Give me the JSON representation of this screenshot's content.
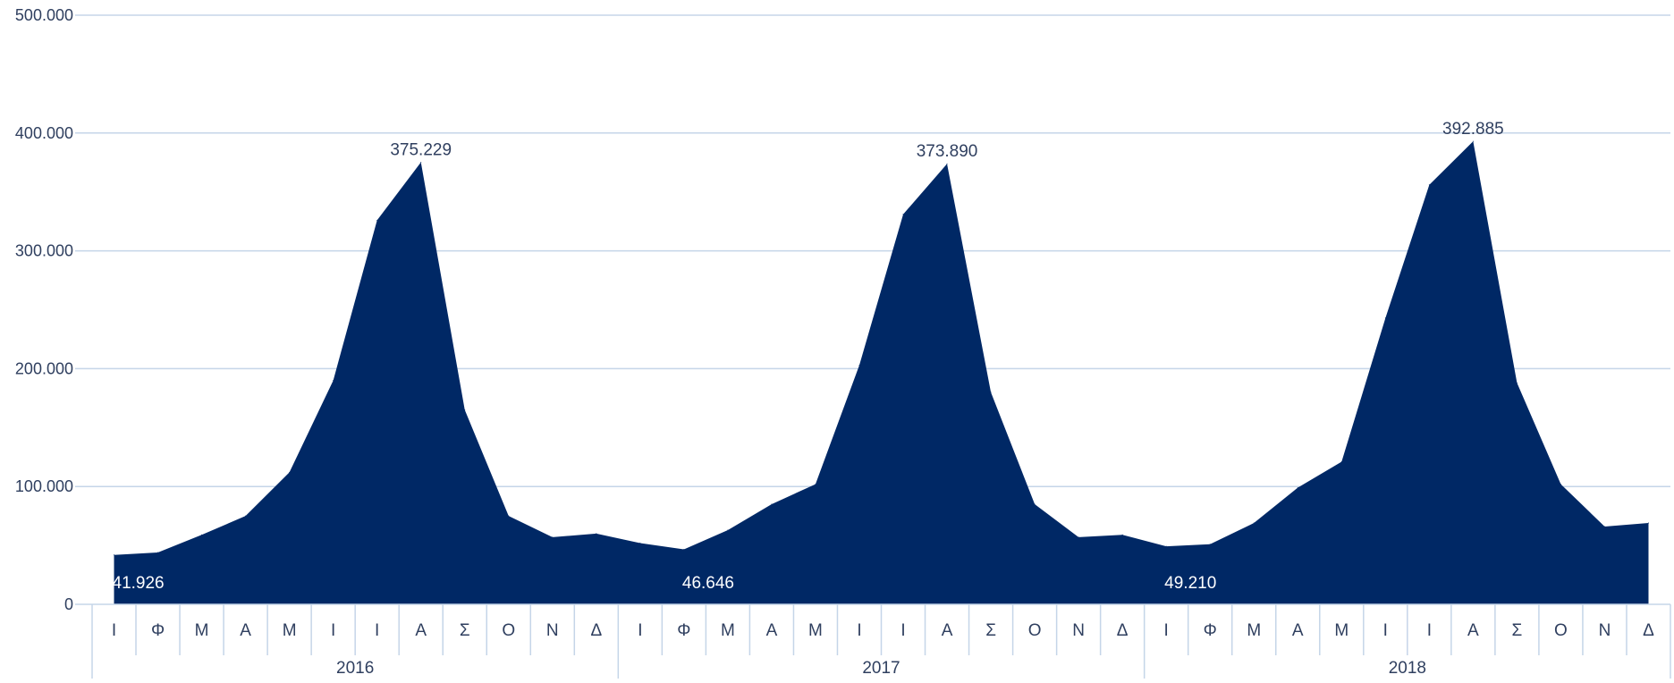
{
  "chart_data": {
    "type": "area",
    "title": "",
    "xlabel": "",
    "ylabel": "",
    "ylim": [
      0,
      500000
    ],
    "y_ticks": [
      0,
      100000,
      200000,
      300000,
      400000,
      500000
    ],
    "y_tick_labels": [
      "0",
      "100.000",
      "200.000",
      "300.000",
      "400.000",
      "500.000"
    ],
    "grid": true,
    "legend": "none",
    "month_labels": [
      "Ι",
      "Φ",
      "Μ",
      "Α",
      "Μ",
      "Ι",
      "Ι",
      "Α",
      "Σ",
      "Ο",
      "Ν",
      "Δ"
    ],
    "years": [
      "2016",
      "2017",
      "2018"
    ],
    "series": [
      {
        "values": [
          41926,
          44000,
          59000,
          75000,
          112000,
          190000,
          326000,
          375229,
          165000,
          75000,
          57000,
          60000,
          52000,
          46646,
          63000,
          85000,
          102000,
          203000,
          331000,
          373890,
          180000,
          85000,
          57000,
          59000,
          49210,
          51000,
          69000,
          99000,
          121000,
          243000,
          356000,
          392885,
          188000,
          102000,
          66000,
          69000
        ],
        "color": "#002865"
      }
    ],
    "data_labels": [
      {
        "index": 0,
        "text": "41.926",
        "position": "inside-bottom"
      },
      {
        "index": 7,
        "text": "375.229",
        "position": "above"
      },
      {
        "index": 13,
        "text": "46.646",
        "position": "inside-bottom"
      },
      {
        "index": 19,
        "text": "373.890",
        "position": "above"
      },
      {
        "index": 24,
        "text": "49.210",
        "position": "inside-bottom"
      },
      {
        "index": 31,
        "text": "392.885",
        "position": "above"
      }
    ],
    "colors": {
      "area": "#002865",
      "grid": "#C5D5E8",
      "text": "#2F3F5F",
      "inner_label": "#FFFFFF",
      "axis": "#C5D5E8"
    }
  }
}
